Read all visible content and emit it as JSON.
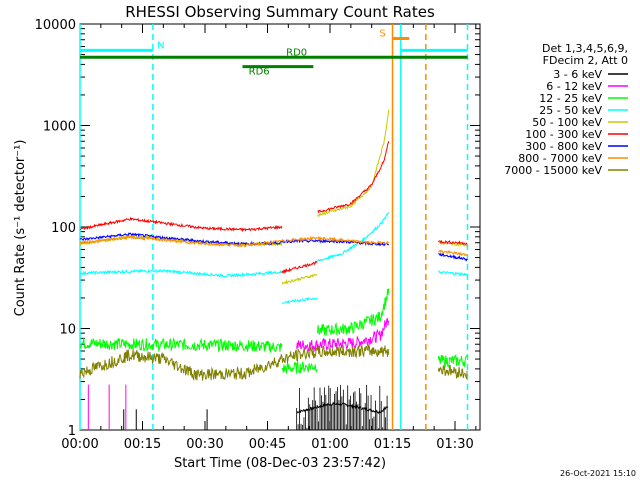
{
  "chart_data": {
    "type": "line",
    "title": "RHESSI Observing Summary Count Rates",
    "xlabel": "Start Time (08-Dec-03 23:57:42)",
    "ylabel": "Count Rate (s⁻¹ detector⁻¹)",
    "y_scale": "log",
    "ylim": [
      1,
      10000
    ],
    "xlim_minutes": [
      0,
      96
    ],
    "x_ticks": [
      {
        "m": 0,
        "label": "00:00"
      },
      {
        "m": 15,
        "label": "00:15"
      },
      {
        "m": 30,
        "label": "00:30"
      },
      {
        "m": 45,
        "label": "00:45"
      },
      {
        "m": 60,
        "label": "01:00"
      },
      {
        "m": 75,
        "label": "01:15"
      },
      {
        "m": 90,
        "label": "01:30"
      }
    ],
    "y_ticks": [
      {
        "v": 1,
        "label": "1"
      },
      {
        "v": 10,
        "label": "10"
      },
      {
        "v": 100,
        "label": "100"
      },
      {
        "v": 1000,
        "label": "1000"
      },
      {
        "v": 10000,
        "label": "10000"
      }
    ],
    "legend_header": [
      "Det 1,3,4,5,6,9,",
      "FDecim 2, Att 0"
    ],
    "legend_position": "right",
    "series": [
      {
        "name": "3 - 6 keV",
        "color": "#000000",
        "segments": [
          [
            [
              52,
              1.5
            ],
            [
              60,
              1.8
            ],
            [
              63,
              1.8
            ],
            [
              72,
              1.5
            ],
            [
              74,
              1.7
            ]
          ]
        ]
      },
      {
        "name": "6 - 12 keV",
        "color": "#ff00ff",
        "segments": [
          [
            [
              52,
              6.8
            ],
            [
              60,
              7.0
            ],
            [
              66,
              7.2
            ],
            [
              72,
              8.5
            ],
            [
              74.2,
              13
            ]
          ]
        ]
      },
      {
        "name": "12 - 25 keV",
        "color": "#00ff00",
        "segments": [
          [
            [
              0,
              7.2
            ],
            [
              12,
              7.0
            ],
            [
              40,
              6.8
            ],
            [
              48.5,
              6.5
            ]
          ],
          [
            [
              48.5,
              4.0
            ],
            [
              57,
              4.3
            ]
          ],
          [
            [
              57,
              9.5
            ],
            [
              65,
              10
            ],
            [
              72,
              13
            ],
            [
              74.2,
              24
            ]
          ],
          [
            [
              86,
              4.8
            ],
            [
              93,
              4.8
            ]
          ]
        ]
      },
      {
        "name": "25 - 50 keV",
        "color": "#00ffff",
        "segments": [
          [
            [
              0,
              35
            ],
            [
              12,
              36.5
            ],
            [
              20,
              37
            ],
            [
              35,
              33
            ],
            [
              48.5,
              36
            ]
          ],
          [
            [
              48.5,
              18
            ],
            [
              57,
              20
            ]
          ],
          [
            [
              57,
              46
            ],
            [
              63,
              55
            ],
            [
              68,
              75
            ],
            [
              72,
              105
            ],
            [
              74.2,
              140
            ]
          ],
          [
            [
              86,
              36
            ],
            [
              93,
              34
            ]
          ]
        ]
      },
      {
        "name": "50 - 100 keV",
        "color": "#c8c800",
        "segments": [
          [
            [
              0,
              68
            ],
            [
              12,
              80
            ],
            [
              18,
              78
            ],
            [
              30,
              70
            ],
            [
              40,
              68
            ],
            [
              48.5,
              68
            ]
          ],
          [
            [
              48.5,
              28
            ],
            [
              57,
              34
            ]
          ],
          [
            [
              57,
              130
            ],
            [
              65,
              160
            ],
            [
              70,
              250
            ],
            [
              73,
              700
            ],
            [
              74.2,
              1500
            ]
          ],
          [
            [
              86,
              70
            ],
            [
              93,
              66
            ]
          ]
        ]
      },
      {
        "name": "100 - 300 keV",
        "color": "#ff0000",
        "segments": [
          [
            [
              0,
              95
            ],
            [
              12,
              120
            ],
            [
              18,
              112
            ],
            [
              30,
              97
            ],
            [
              40,
              94
            ],
            [
              48.5,
              100
            ]
          ],
          [
            [
              48.5,
              36
            ],
            [
              57,
              45
            ]
          ],
          [
            [
              57,
              140
            ],
            [
              65,
              170
            ],
            [
              70,
              260
            ],
            [
              73,
              450
            ],
            [
              74.2,
              750
            ]
          ],
          [
            [
              86,
              72
            ],
            [
              93,
              69
            ]
          ]
        ]
      },
      {
        "name": "300 - 800 keV",
        "color": "#0000ff",
        "segments": [
          [
            [
              0,
              75
            ],
            [
              12,
              85
            ],
            [
              18,
              80
            ],
            [
              30,
              72
            ],
            [
              40,
              68
            ],
            [
              48.5,
              70
            ]
          ],
          [
            [
              48.5,
              72
            ],
            [
              57,
              73
            ],
            [
              63,
              72
            ],
            [
              70,
              68
            ],
            [
              74.2,
              68
            ]
          ],
          [
            [
              86,
              54
            ],
            [
              93,
              48
            ]
          ]
        ]
      },
      {
        "name": "800 - 7000 keV",
        "color": "#ff8c00",
        "segments": [
          [
            [
              0,
              70
            ],
            [
              12,
              79
            ],
            [
              18,
              76
            ],
            [
              30,
              68
            ],
            [
              40,
              66
            ],
            [
              50,
              74
            ],
            [
              57,
              78
            ],
            [
              63,
              74
            ],
            [
              70,
              70
            ],
            [
              74.2,
              70
            ]
          ],
          [
            [
              86,
              58
            ],
            [
              93,
              53
            ]
          ]
        ]
      },
      {
        "name": "7000 - 15000 keV",
        "color": "#808000",
        "segments": [
          [
            [
              0,
              3.6
            ],
            [
              12,
              5.5
            ],
            [
              20,
              5.0
            ],
            [
              28,
              3.5
            ],
            [
              40,
              3.6
            ],
            [
              48.5,
              5.0
            ],
            [
              55,
              5.8
            ],
            [
              65,
              6.0
            ],
            [
              74.2,
              6.0
            ]
          ],
          [
            [
              86,
              4.0
            ],
            [
              93,
              3.6
            ]
          ]
        ]
      }
    ],
    "flags": [
      {
        "label": "N",
        "color": "#00ffff",
        "y": 5500,
        "segments": [
          [
            0,
            17.5
          ],
          [
            77,
            93
          ]
        ]
      },
      {
        "label": "RD0",
        "color": "#008000",
        "y": 4700,
        "segments": [
          [
            0,
            93
          ]
        ]
      },
      {
        "label": "RD6",
        "color": "#008000",
        "y": 3800,
        "segments": [
          [
            39,
            56
          ]
        ]
      },
      {
        "label": "S",
        "color": "#ff8c00",
        "y": 7200,
        "segments": [
          [
            75,
            79
          ]
        ]
      }
    ],
    "vlines": [
      {
        "m": 0,
        "color": "#00ffff",
        "dash": false
      },
      {
        "m": 17.5,
        "color": "#00ffff",
        "dash": true
      },
      {
        "m": 75,
        "color": "#ff8c00",
        "dash": false
      },
      {
        "m": 77,
        "color": "#00ffff",
        "dash": false
      },
      {
        "m": 83,
        "color": "#ff8c00",
        "dash": true
      },
      {
        "m": 93,
        "color": "#00ffff",
        "dash": true
      }
    ]
  },
  "footer_date": "26-Oct-2021 15:10"
}
